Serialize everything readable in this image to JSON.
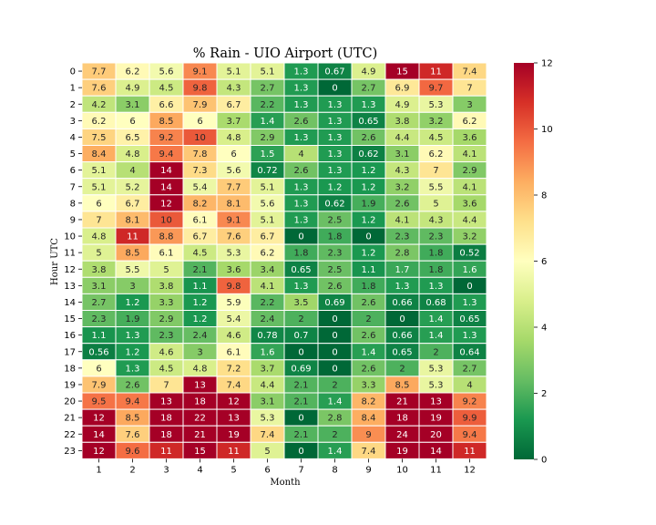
{
  "chart_data": {
    "type": "heatmap",
    "title": "% Rain - UIO Airport (UTC)",
    "xlabel": "Month",
    "ylabel": "Hour UTC",
    "x_categories": [
      "1",
      "2",
      "3",
      "4",
      "5",
      "6",
      "7",
      "8",
      "9",
      "10",
      "11",
      "12"
    ],
    "y_categories": [
      "0",
      "1",
      "2",
      "3",
      "4",
      "5",
      "6",
      "7",
      "8",
      "9",
      "10",
      "11",
      "12",
      "13",
      "14",
      "15",
      "16",
      "17",
      "18",
      "19",
      "20",
      "21",
      "22",
      "23"
    ],
    "values": [
      [
        7.7,
        6.2,
        5.6,
        9.1,
        5.1,
        5.1,
        1.3,
        0.67,
        4.9,
        15,
        11,
        7.4
      ],
      [
        7.6,
        4.9,
        4.5,
        9.8,
        4.3,
        2.7,
        1.3,
        0,
        2.7,
        6.9,
        9.7,
        7
      ],
      [
        4.2,
        3.1,
        6.6,
        7.9,
        6.7,
        2.2,
        1.3,
        1.3,
        1.3,
        4.9,
        5.3,
        3
      ],
      [
        6.2,
        6,
        8.5,
        6,
        3.7,
        1.4,
        2.6,
        1.3,
        0.65,
        3.8,
        3.2,
        6.2
      ],
      [
        7.5,
        6.5,
        9.2,
        10,
        4.8,
        2.9,
        1.3,
        1.3,
        2.6,
        4.4,
        4.5,
        3.6
      ],
      [
        8.4,
        4.8,
        9.4,
        7.8,
        6,
        1.5,
        4,
        1.3,
        0.62,
        3.1,
        6.2,
        4.1
      ],
      [
        5.1,
        4,
        14,
        7.3,
        5.6,
        0.72,
        2.6,
        1.3,
        1.2,
        4.3,
        7,
        2.9
      ],
      [
        5.1,
        5.2,
        14,
        5.4,
        7.7,
        5.1,
        1.3,
        1.2,
        1.2,
        3.2,
        5.5,
        4.1
      ],
      [
        6,
        6.7,
        12,
        8.2,
        8.1,
        5.6,
        1.3,
        0.62,
        1.9,
        2.6,
        5,
        3.6
      ],
      [
        7,
        8.1,
        10,
        6.1,
        9.1,
        5.1,
        1.3,
        2.5,
        1.2,
        4.1,
        4.3,
        4.4
      ],
      [
        4.8,
        11,
        8.8,
        6.7,
        7.6,
        6.7,
        0,
        1.8,
        0,
        2.3,
        2.3,
        3.2
      ],
      [
        5,
        8.5,
        6.1,
        4.5,
        5.3,
        6.2,
        1.8,
        2.3,
        1.2,
        2.8,
        1.8,
        0.52
      ],
      [
        3.8,
        5.5,
        5,
        2.1,
        3.6,
        3.4,
        0.65,
        2.5,
        1.1,
        1.7,
        1.8,
        1.6
      ],
      [
        3.1,
        3,
        3.8,
        1.1,
        9.8,
        4.1,
        1.3,
        2.6,
        1.8,
        1.3,
        1.3,
        0
      ],
      [
        2.7,
        1.2,
        3.3,
        1.2,
        5.9,
        2.2,
        3.5,
        0.69,
        2.6,
        0.66,
        0.68,
        1.3
      ],
      [
        2.3,
        1.9,
        2.9,
        1.2,
        5.4,
        2.4,
        2,
        0,
        2,
        0,
        1.4,
        0.65
      ],
      [
        1.1,
        1.3,
        2.3,
        2.4,
        4.6,
        0.78,
        0.7,
        0,
        2.6,
        0.66,
        1.4,
        1.3
      ],
      [
        0.56,
        1.2,
        4.6,
        3,
        6.1,
        1.6,
        0,
        0,
        1.4,
        0.65,
        2,
        0.64
      ],
      [
        6,
        1.3,
        4.5,
        4.8,
        7.2,
        3.7,
        0.69,
        0,
        2.6,
        2,
        5.3,
        2.7
      ],
      [
        7.9,
        2.6,
        7,
        13,
        7.4,
        4.4,
        2.1,
        2,
        3.3,
        8.5,
        5.3,
        4
      ],
      [
        9.5,
        9.4,
        13,
        18,
        12,
        3.1,
        2.1,
        1.4,
        8.2,
        21,
        13,
        9.2
      ],
      [
        12,
        8.5,
        18,
        22,
        13,
        5.3,
        0,
        2.8,
        8.4,
        18,
        19,
        9.9
      ],
      [
        14,
        7.6,
        18,
        21,
        19,
        7.4,
        2.1,
        2,
        9,
        24,
        20,
        9.4
      ],
      [
        12,
        9.6,
        11,
        15,
        11,
        5,
        0,
        1.4,
        7.4,
        19,
        14,
        11
      ]
    ],
    "colormap": "RdYlGn_r",
    "vmin": 0,
    "vmax": 12,
    "colorbar_ticks": [
      "0",
      "2",
      "4",
      "6",
      "8",
      "10",
      "12"
    ],
    "grid": "white cell borders",
    "annotated": true
  }
}
